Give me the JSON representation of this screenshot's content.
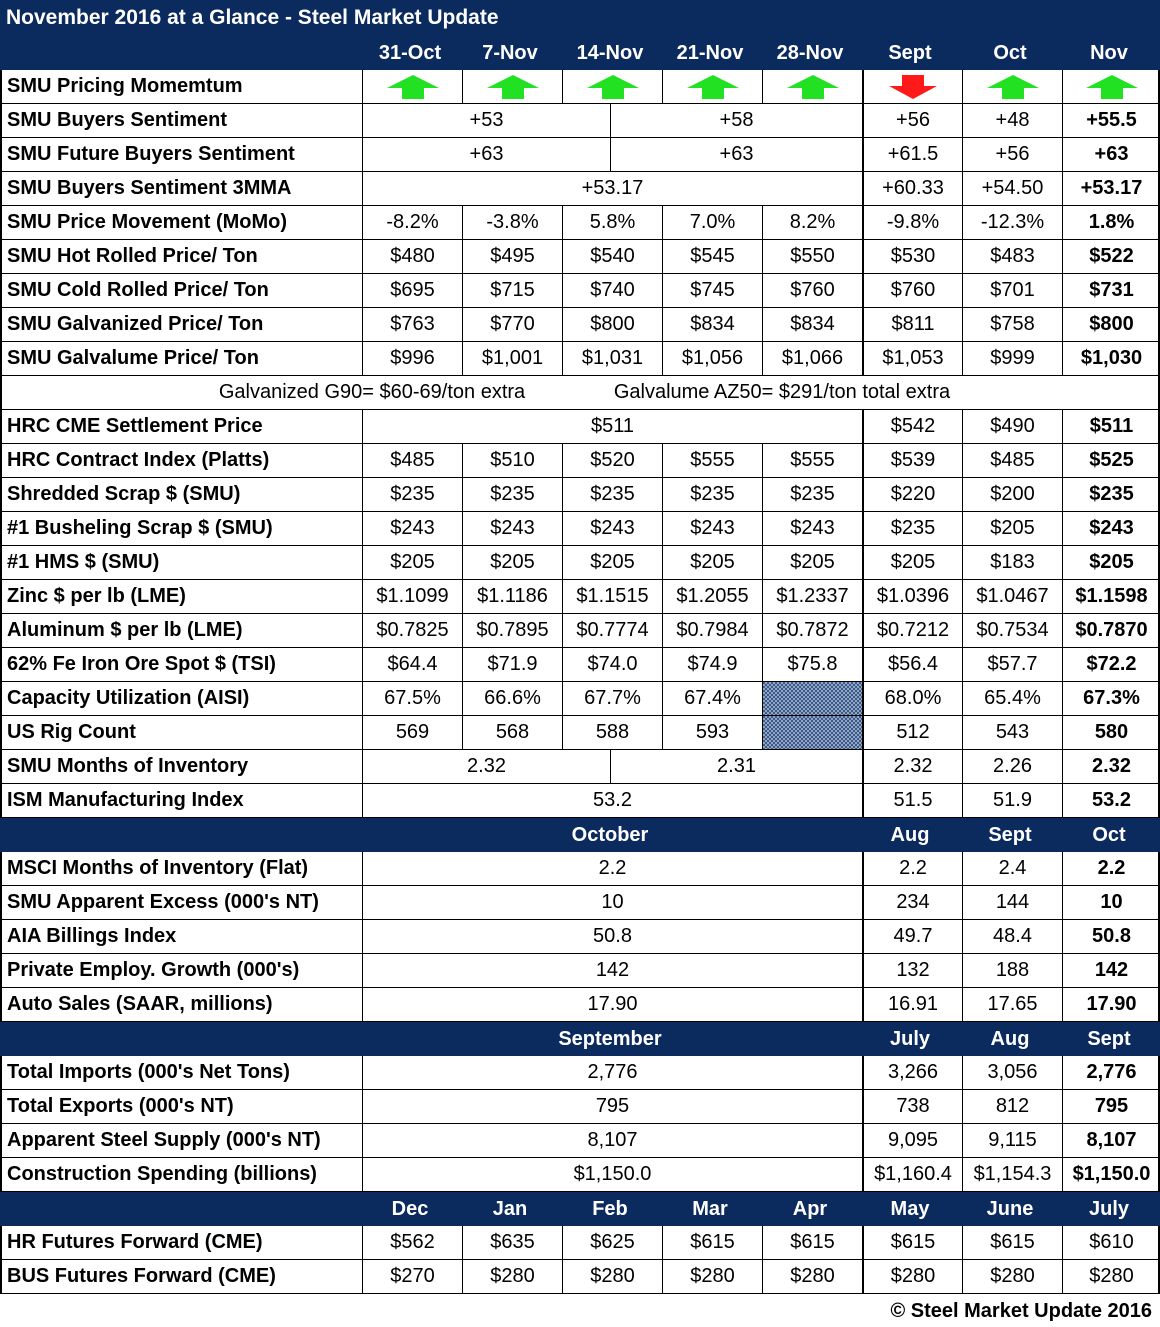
{
  "title": "November 2016 at a Glance - Steel Market Update",
  "header_cols": [
    "31-Oct",
    "7-Nov",
    "14-Nov",
    "21-Nov",
    "28-Nov",
    "Sept",
    "Oct",
    "Nov"
  ],
  "colors": {
    "header_bg": "#0b2a5e",
    "arrow_up": "#22e022",
    "arrow_down": "#ff1a1a"
  },
  "momentum": {
    "label": "SMU Pricing Momemtum",
    "arrows": [
      "up",
      "up",
      "up",
      "up",
      "up",
      "down",
      "up",
      "up"
    ]
  },
  "rows_a": [
    {
      "label": "SMU Buyers Sentiment",
      "spans": [
        "+53",
        "+58"
      ],
      "monthly": [
        "+56",
        "+48",
        "+55.5"
      ]
    },
    {
      "label": "SMU Future Buyers Sentiment",
      "spans": [
        "+63",
        "+63"
      ],
      "monthly": [
        "+61.5",
        "+56",
        "+63"
      ]
    },
    {
      "label": "SMU Buyers Sentiment 3MMA",
      "span": "+53.17",
      "monthly": [
        "+60.33",
        "+54.50",
        "+53.17"
      ]
    },
    {
      "label": "SMU Price Movement (MoMo)",
      "weekly": [
        "-8.2%",
        "-3.8%",
        "5.8%",
        "7.0%",
        "8.2%"
      ],
      "monthly": [
        "-9.8%",
        "-12.3%",
        "1.8%"
      ]
    },
    {
      "label": "SMU Hot Rolled Price/ Ton",
      "weekly": [
        "$480",
        "$495",
        "$540",
        "$545",
        "$550"
      ],
      "monthly": [
        "$530",
        "$483",
        "$522"
      ]
    },
    {
      "label": "SMU Cold Rolled Price/ Ton",
      "weekly": [
        "$695",
        "$715",
        "$740",
        "$745",
        "$760"
      ],
      "monthly": [
        "$760",
        "$701",
        "$731"
      ]
    },
    {
      "label": "SMU Galvanized Price/ Ton",
      "weekly": [
        "$763",
        "$770",
        "$800",
        "$834",
        "$834"
      ],
      "monthly": [
        "$811",
        "$758",
        "$800"
      ]
    },
    {
      "label": "SMU Galvalume Price/ Ton",
      "weekly": [
        "$996",
        "$1,001",
        "$1,031",
        "$1,056",
        "$1,066"
      ],
      "monthly": [
        "$1,053",
        "$999",
        "$1,030"
      ]
    }
  ],
  "note": {
    "left": "Galvanized G90= $60-69/ton extra",
    "right": "Galvalume AZ50= $291/ton total extra"
  },
  "rows_b": [
    {
      "label": "HRC CME Settlement Price",
      "span": "$511",
      "monthly": [
        "$542",
        "$490",
        "$511"
      ]
    },
    {
      "label": "HRC Contract Index (Platts)",
      "weekly": [
        "$485",
        "$510",
        "$520",
        "$555",
        "$555"
      ],
      "monthly": [
        "$539",
        "$485",
        "$525"
      ]
    },
    {
      "label": "Shredded Scrap $ (SMU)",
      "weekly": [
        "$235",
        "$235",
        "$235",
        "$235",
        "$235"
      ],
      "monthly": [
        "$220",
        "$200",
        "$235"
      ]
    },
    {
      "label": "#1 Busheling Scrap $ (SMU)",
      "weekly": [
        "$243",
        "$243",
        "$243",
        "$243",
        "$243"
      ],
      "monthly": [
        "$235",
        "$205",
        "$243"
      ]
    },
    {
      "label": "#1 HMS $ (SMU)",
      "weekly": [
        "$205",
        "$205",
        "$205",
        "$205",
        "$205"
      ],
      "monthly": [
        "$205",
        "$183",
        "$205"
      ]
    },
    {
      "label": "Zinc $ per lb (LME)",
      "weekly": [
        "$1.1099",
        "$1.1186",
        "$1.1515",
        "$1.2055",
        "$1.2337"
      ],
      "monthly": [
        "$1.0396",
        "$1.0467",
        "$1.1598"
      ]
    },
    {
      "label": "Aluminum $ per lb (LME)",
      "weekly": [
        "$0.7825",
        "$0.7895",
        "$0.7774",
        "$0.7984",
        "$0.7872"
      ],
      "monthly": [
        "$0.7212",
        "$0.7534",
        "$0.7870"
      ]
    },
    {
      "label": "62% Fe Iron Ore Spot $ (TSI)",
      "weekly": [
        "$64.4",
        "$71.9",
        "$74.0",
        "$74.9",
        "$75.8"
      ],
      "monthly": [
        "$56.4",
        "$57.7",
        "$72.2"
      ]
    },
    {
      "label": "Capacity Utilization (AISI)",
      "weekly": [
        "67.5%",
        "66.6%",
        "67.7%",
        "67.4%",
        ""
      ],
      "hatch": true,
      "monthly": [
        "68.0%",
        "65.4%",
        "67.3%"
      ]
    },
    {
      "label": "US Rig Count",
      "weekly": [
        "569",
        "568",
        "588",
        "593",
        ""
      ],
      "hatch": true,
      "monthly": [
        "512",
        "543",
        "580"
      ]
    },
    {
      "label": "SMU Months of Inventory",
      "spans": [
        "2.32",
        "2.31"
      ],
      "monthly": [
        "2.32",
        "2.26",
        "2.32"
      ]
    },
    {
      "label": "ISM Manufacturing Index",
      "span": "53.2",
      "monthly": [
        "51.5",
        "51.9",
        "53.2"
      ]
    }
  ],
  "section_c": {
    "header": {
      "span": "October",
      "months": [
        "Aug",
        "Sept",
        "Oct"
      ]
    },
    "rows": [
      {
        "label": "MSCI Months of Inventory (Flat)",
        "span": "2.2",
        "monthly": [
          "2.2",
          "2.4",
          "2.2"
        ]
      },
      {
        "label": "SMU Apparent Excess (000's NT)",
        "span": "10",
        "monthly": [
          "234",
          "144",
          "10"
        ]
      },
      {
        "label": "AIA Billings Index",
        "span": "50.8",
        "monthly": [
          "49.7",
          "48.4",
          "50.8"
        ]
      },
      {
        "label": "Private Employ. Growth (000's)",
        "span": "142",
        "monthly": [
          "132",
          "188",
          "142"
        ]
      },
      {
        "label": "Auto Sales (SAAR, millions)",
        "span": "17.90",
        "monthly": [
          "16.91",
          "17.65",
          "17.90"
        ]
      }
    ]
  },
  "section_d": {
    "header": {
      "span": "September",
      "months": [
        "July",
        "Aug",
        "Sept"
      ]
    },
    "rows": [
      {
        "label": "Total Imports (000's Net Tons)",
        "span": "2,776",
        "monthly": [
          "3,266",
          "3,056",
          "2,776"
        ]
      },
      {
        "label": "Total Exports (000's NT)",
        "span": "795",
        "monthly": [
          "738",
          "812",
          "795"
        ]
      },
      {
        "label": "Apparent Steel Supply (000's NT)",
        "span": "8,107",
        "monthly": [
          "9,095",
          "9,115",
          "8,107"
        ]
      },
      {
        "label": "Construction Spending (billions)",
        "span": "$1,150.0",
        "monthly": [
          "$1,160.4",
          "$1,154.3",
          "$1,150.0"
        ]
      }
    ]
  },
  "section_e": {
    "header": [
      "Dec",
      "Jan",
      "Feb",
      "Mar",
      "Apr",
      "May",
      "June",
      "July"
    ],
    "rows": [
      {
        "label": "HR Futures Forward (CME)",
        "values": [
          "$562",
          "$635",
          "$625",
          "$615",
          "$615",
          "$615",
          "$615",
          "$610"
        ]
      },
      {
        "label": "BUS Futures Forward (CME)",
        "values": [
          "$270",
          "$280",
          "$280",
          "$280",
          "$280",
          "$280",
          "$280",
          "$280"
        ]
      }
    ]
  },
  "footer": "© Steel Market Update 2016"
}
